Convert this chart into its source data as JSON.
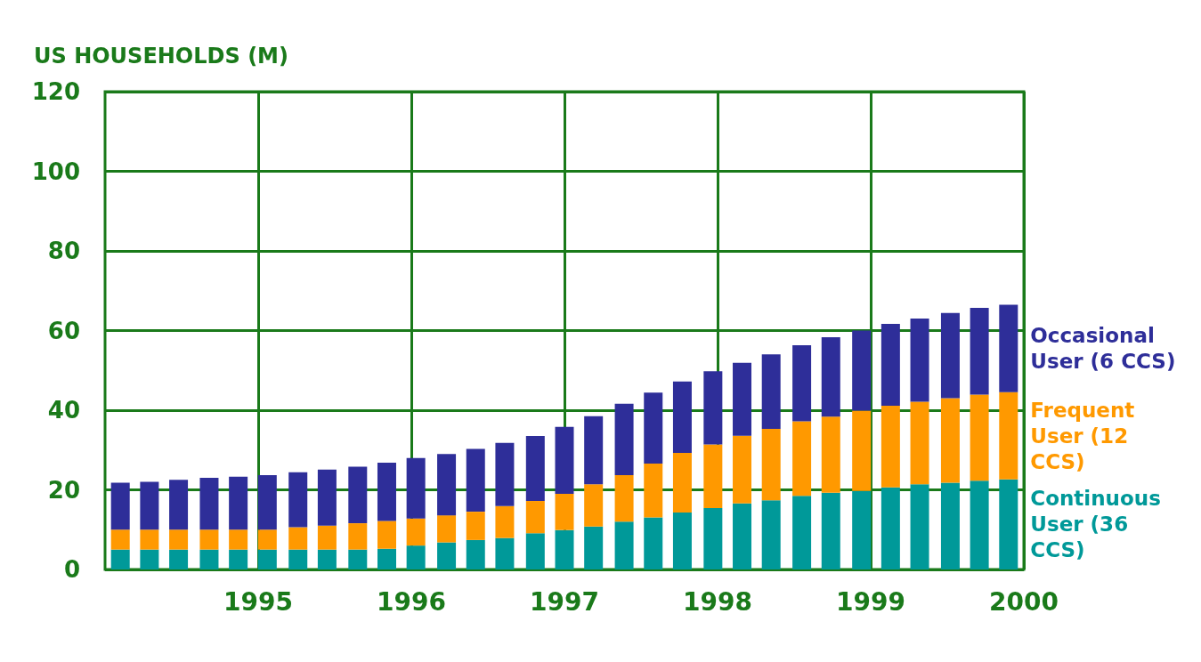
{
  "chart_data": {
    "type": "bar",
    "stacked": true,
    "ylabel": "US HOUSEHOLDS (M)",
    "x": [
      1994.1,
      1994.29,
      1994.48,
      1994.68,
      1994.87,
      1995.06,
      1995.26,
      1995.45,
      1995.65,
      1995.84,
      1996.03,
      1996.23,
      1996.42,
      1996.61,
      1996.81,
      1997.0,
      1997.19,
      1997.39,
      1997.58,
      1997.77,
      1997.97,
      1998.16,
      1998.35,
      1998.55,
      1998.74,
      1998.94,
      1999.13,
      1999.32,
      1999.52,
      1999.71,
      1999.9
    ],
    "series": [
      {
        "name": "Continuous User (36 CCS)",
        "color": "#009999",
        "values": [
          5,
          5,
          5,
          5,
          5,
          5,
          5,
          5,
          5,
          5.2,
          6,
          6.8,
          7.4,
          7.9,
          9.1,
          9.9,
          10.8,
          12,
          13.1,
          14.3,
          15.4,
          16.6,
          17.4,
          18.5,
          19.3,
          19.7,
          20.6,
          21.4,
          21.8,
          22.3,
          22.6
        ]
      },
      {
        "name": "Frequent User (12 CCS)",
        "color": "#ff9900",
        "values": [
          5,
          5,
          5,
          5,
          5,
          5,
          5.6,
          6,
          6.6,
          7,
          6.8,
          6.8,
          7.1,
          8,
          8.1,
          9.1,
          10.6,
          11.7,
          13.5,
          15,
          16,
          17,
          17.9,
          18.7,
          19.1,
          20.2,
          20.5,
          20.7,
          21.2,
          21.6,
          21.9
        ]
      },
      {
        "name": "Occasional User (6 CCS)",
        "color": "#2e2e99",
        "values": [
          11.8,
          12,
          12.5,
          13,
          13.3,
          13.7,
          13.8,
          14.1,
          14.2,
          14.6,
          15.2,
          15.4,
          15.8,
          15.9,
          16.3,
          16.8,
          17.1,
          17.9,
          17.8,
          17.9,
          18.4,
          18.3,
          18.7,
          19.1,
          19.9,
          20.1,
          20.6,
          20.9,
          21.4,
          21.8,
          22
        ]
      }
    ],
    "xlim": [
      1994,
      2000
    ],
    "xticks": [
      1995,
      1996,
      1997,
      1998,
      1999,
      2000
    ],
    "ylim": [
      0,
      120
    ],
    "yticks": [
      0,
      20,
      40,
      60,
      80,
      100,
      120
    ],
    "grid": true,
    "legend": false
  }
}
